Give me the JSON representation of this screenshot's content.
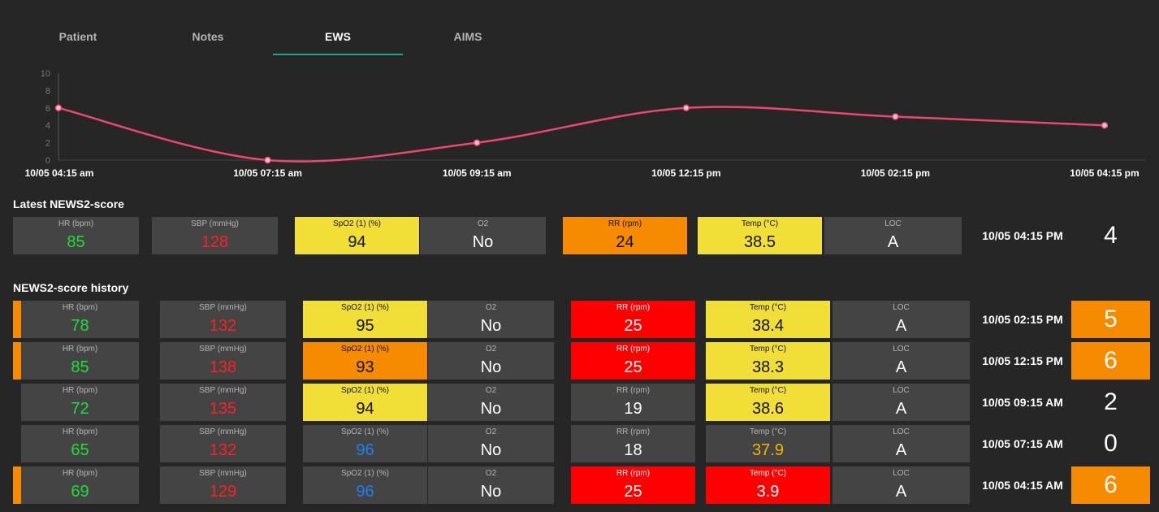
{
  "tabs": [
    {
      "label": "Patient"
    },
    {
      "label": "Notes"
    },
    {
      "label": "EWS",
      "active": true
    },
    {
      "label": "AIMS"
    }
  ],
  "colors": {
    "accent": "#1aa58d",
    "line": "#ee4572",
    "yellow": "#f1de36",
    "orange": "#f68a00",
    "red": "#ff0000",
    "green_text": "#21dc3a",
    "red_text": "#ff2020",
    "blue_text": "#1e7ff0",
    "amber_text": "#f6b400"
  },
  "chart_data": {
    "type": "line",
    "x": [
      "10/05 04:15 am",
      "10/05 07:15 am",
      "10/05 09:15 am",
      "10/05 12:15 pm",
      "10/05 02:15 pm",
      "10/05 04:15 pm"
    ],
    "series": [
      {
        "values": [
          6,
          0,
          2,
          6,
          5,
          4
        ]
      }
    ],
    "yticks": [
      "0",
      "2",
      "4",
      "6",
      "8",
      "10"
    ],
    "ylim": [
      0,
      10
    ],
    "grid": false
  },
  "latest": {
    "title": "Latest NEWS2-score",
    "row": {
      "cells": [
        {
          "label": "HR (bpm)",
          "value": "85",
          "bg": "",
          "text": "green"
        },
        {
          "label": "SBP (mmHg)",
          "value": "128",
          "bg": "",
          "text": "red"
        },
        {
          "label": "SpO2 (1) (%)",
          "value": "94",
          "bg": "yellow",
          "text": ""
        },
        {
          "label": "O2",
          "value": "No",
          "bg": "",
          "text": ""
        },
        {
          "label": "RR (rpm)",
          "value": "24",
          "bg": "orange",
          "text": ""
        },
        {
          "label": "Temp (°C)",
          "value": "38.5",
          "bg": "yellow",
          "text": ""
        },
        {
          "label": "LOC",
          "value": "A",
          "bg": "",
          "text": ""
        }
      ],
      "datetime": "10/05 04:15 PM",
      "score": "4",
      "level": "none"
    }
  },
  "history": {
    "title": "NEWS2-score history",
    "rows": [
      {
        "cells": [
          {
            "label": "HR (bpm)",
            "value": "78",
            "bg": "",
            "text": "green"
          },
          {
            "label": "SBP (mmHg)",
            "value": "132",
            "bg": "",
            "text": "red"
          },
          {
            "label": "SpO2 (1) (%)",
            "value": "95",
            "bg": "yellow",
            "text": ""
          },
          {
            "label": "O2",
            "value": "No",
            "bg": "",
            "text": ""
          },
          {
            "label": "RR (rpm)",
            "value": "25",
            "bg": "red",
            "text": ""
          },
          {
            "label": "Temp (°C)",
            "value": "38.4",
            "bg": "yellow",
            "text": ""
          },
          {
            "label": "LOC",
            "value": "A",
            "bg": "",
            "text": ""
          }
        ],
        "datetime": "10/05 02:15 PM",
        "score": "5",
        "level": "orange"
      },
      {
        "cells": [
          {
            "label": "HR (bpm)",
            "value": "85",
            "bg": "",
            "text": "green"
          },
          {
            "label": "SBP (mmHg)",
            "value": "138",
            "bg": "",
            "text": "red"
          },
          {
            "label": "SpO2 (1) (%)",
            "value": "93",
            "bg": "orange",
            "text": ""
          },
          {
            "label": "O2",
            "value": "No",
            "bg": "",
            "text": ""
          },
          {
            "label": "RR (rpm)",
            "value": "25",
            "bg": "red",
            "text": ""
          },
          {
            "label": "Temp (°C)",
            "value": "38.3",
            "bg": "yellow",
            "text": ""
          },
          {
            "label": "LOC",
            "value": "A",
            "bg": "",
            "text": ""
          }
        ],
        "datetime": "10/05 12:15 PM",
        "score": "6",
        "level": "orange"
      },
      {
        "cells": [
          {
            "label": "HR (bpm)",
            "value": "72",
            "bg": "",
            "text": "green"
          },
          {
            "label": "SBP (mmHg)",
            "value": "135",
            "bg": "",
            "text": "red"
          },
          {
            "label": "SpO2 (1) (%)",
            "value": "94",
            "bg": "yellow",
            "text": ""
          },
          {
            "label": "O2",
            "value": "No",
            "bg": "",
            "text": ""
          },
          {
            "label": "RR (rpm)",
            "value": "19",
            "bg": "",
            "text": ""
          },
          {
            "label": "Temp (°C)",
            "value": "38.6",
            "bg": "yellow",
            "text": ""
          },
          {
            "label": "LOC",
            "value": "A",
            "bg": "",
            "text": ""
          }
        ],
        "datetime": "10/05 09:15 AM",
        "score": "2",
        "level": "none"
      },
      {
        "cells": [
          {
            "label": "HR (bpm)",
            "value": "65",
            "bg": "",
            "text": "green"
          },
          {
            "label": "SBP (mmHg)",
            "value": "132",
            "bg": "",
            "text": "red"
          },
          {
            "label": "SpO2 (1) (%)",
            "value": "96",
            "bg": "",
            "text": "blue"
          },
          {
            "label": "O2",
            "value": "No",
            "bg": "",
            "text": ""
          },
          {
            "label": "RR (rpm)",
            "value": "18",
            "bg": "",
            "text": ""
          },
          {
            "label": "Temp (°C)",
            "value": "37.9",
            "bg": "",
            "text": "amber"
          },
          {
            "label": "LOC",
            "value": "A",
            "bg": "",
            "text": ""
          }
        ],
        "datetime": "10/05 07:15 AM",
        "score": "0",
        "level": "none"
      },
      {
        "cells": [
          {
            "label": "HR (bpm)",
            "value": "69",
            "bg": "",
            "text": "green"
          },
          {
            "label": "SBP (mmHg)",
            "value": "129",
            "bg": "",
            "text": "red"
          },
          {
            "label": "SpO2 (1) (%)",
            "value": "96",
            "bg": "",
            "text": "blue"
          },
          {
            "label": "O2",
            "value": "No",
            "bg": "",
            "text": ""
          },
          {
            "label": "RR (rpm)",
            "value": "25",
            "bg": "red",
            "text": ""
          },
          {
            "label": "Temp (°C)",
            "value": "3.9",
            "bg": "red",
            "text": ""
          },
          {
            "label": "LOC",
            "value": "A",
            "bg": "",
            "text": ""
          }
        ],
        "datetime": "10/05 04:15 AM",
        "score": "6",
        "level": "orange"
      }
    ]
  }
}
